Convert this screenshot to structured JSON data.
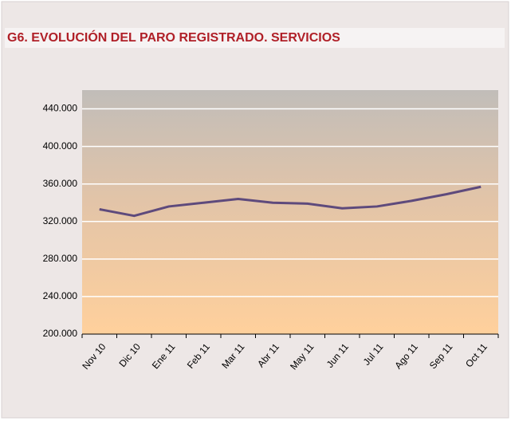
{
  "chart_data": {
    "type": "line",
    "title": "G6. EVOLUCIÓN DEL PARO REGISTRADO. SERVICIOS",
    "categories": [
      "Nov 10",
      "Dic 10",
      "Ene 11",
      "Feb 11",
      "Mar 11",
      "Abr 11",
      "May 11",
      "Jun 11",
      "Jul 11",
      "Ago 11",
      "Sep 11",
      "Oct 11"
    ],
    "series": [
      {
        "name": "Servicios",
        "color": "#5e4a7c",
        "values": [
          333000,
          326000,
          336000,
          340000,
          344000,
          340000,
          339000,
          334000,
          336000,
          342000,
          349000,
          357000
        ]
      }
    ],
    "ylim": [
      200000,
      460000
    ],
    "yticks": [
      {
        "value": 200000,
        "label": "200.000"
      },
      {
        "value": 240000,
        "label": "240.000"
      },
      {
        "value": 280000,
        "label": "280.000"
      },
      {
        "value": 320000,
        "label": "320.000"
      },
      {
        "value": 360000,
        "label": "360.000"
      },
      {
        "value": 400000,
        "label": "400.000"
      },
      {
        "value": 440000,
        "label": "440.000"
      }
    ],
    "grid": true
  }
}
